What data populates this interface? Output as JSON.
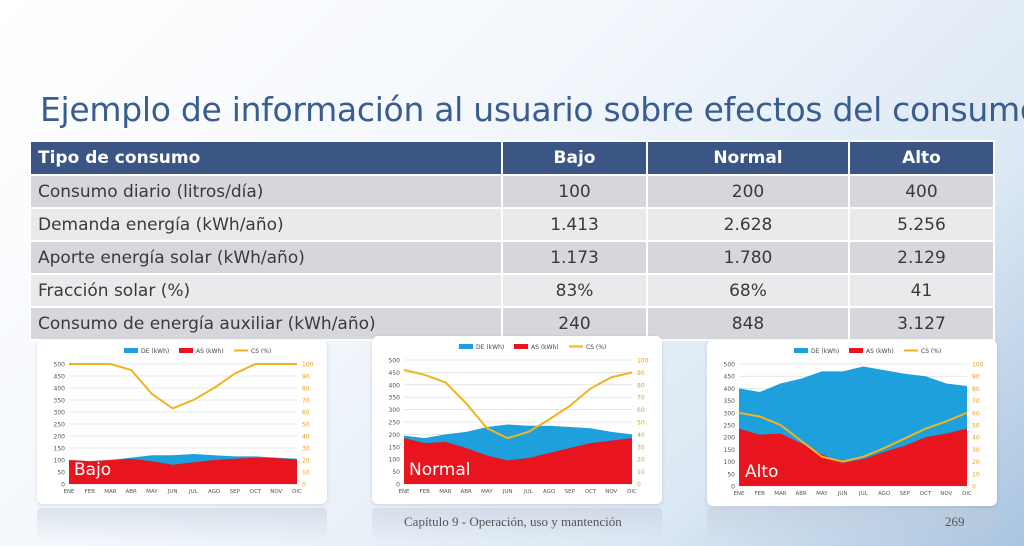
{
  "title": "Ejemplo de información al usuario sobre efectos del consumo",
  "table": {
    "headers": [
      "Tipo  de consumo",
      "Bajo",
      "Normal",
      "Alto"
    ],
    "rows": [
      [
        "Consumo diario (litros/día)",
        "100",
        "200",
        "400"
      ],
      [
        "Demanda energía (kWh/año)",
        "1.413",
        "2.628",
        "5.256"
      ],
      [
        "Aporte energía solar (kWh/año)",
        "1.173",
        "1.780",
        "2.129"
      ],
      [
        "Fracción solar (%)",
        "83%",
        "68%",
        "41"
      ],
      [
        "Consumo de energía auxiliar (kWh/año)",
        "240",
        "848",
        "3.127"
      ]
    ]
  },
  "colors": {
    "de": "#1ea0dc",
    "as": "#e8141e",
    "cs": "#f0b41e",
    "header": "#3b5584"
  },
  "chart_data": [
    {
      "type": "area",
      "tag": "Bajo",
      "legend": [
        "DE (kWh)",
        "AS (kWh)",
        "CS (%)"
      ],
      "categories": [
        "ENE",
        "FEB",
        "MAR",
        "ABR",
        "MAY",
        "JUN",
        "JUL",
        "AGO",
        "SEP",
        "OCT",
        "NOV",
        "DIC"
      ],
      "ylim": [
        0,
        500
      ],
      "y_ticks": [
        "0",
        "50",
        "100",
        "150",
        "200",
        "250",
        "300",
        "350",
        "400",
        "450",
        "500"
      ],
      "y2lim": [
        0,
        100
      ],
      "y2_ticks": [
        "0",
        "10",
        "20",
        "30",
        "40",
        "50",
        "60",
        "70",
        "80",
        "90",
        "100"
      ],
      "series": [
        {
          "name": "DE (kWh)",
          "axis": "left",
          "values": [
            100,
            95,
            100,
            110,
            120,
            120,
            125,
            120,
            115,
            115,
            110,
            105
          ]
        },
        {
          "name": "AS (kWh)",
          "axis": "left",
          "values": [
            100,
            95,
            100,
            105,
            95,
            80,
            90,
            100,
            105,
            110,
            108,
            102
          ]
        },
        {
          "name": "CS (%)",
          "axis": "right",
          "values": [
            100,
            100,
            100,
            95,
            75,
            63,
            70,
            80,
            92,
            100,
            100,
            100
          ]
        }
      ]
    },
    {
      "type": "area",
      "tag": "Normal",
      "legend": [
        "DE (kWh)",
        "AS (kWh)",
        "CS (%)"
      ],
      "categories": [
        "ENE",
        "FEB",
        "MAR",
        "ABR",
        "MAY",
        "JUN",
        "JUL",
        "AGO",
        "SEP",
        "OCT",
        "NOV",
        "DIC"
      ],
      "ylim": [
        0,
        500
      ],
      "y_ticks": [
        "0",
        "50",
        "100",
        "150",
        "200",
        "250",
        "300",
        "350",
        "400",
        "450",
        "500"
      ],
      "y2lim": [
        0,
        100
      ],
      "y2_ticks": [
        "0",
        "10",
        "20",
        "30",
        "40",
        "50",
        "60",
        "70",
        "80",
        "90",
        "100"
      ],
      "series": [
        {
          "name": "DE (kWh)",
          "axis": "left",
          "values": [
            195,
            185,
            200,
            210,
            230,
            240,
            235,
            235,
            230,
            225,
            210,
            200
          ]
        },
        {
          "name": "AS (kWh)",
          "axis": "left",
          "values": [
            185,
            165,
            170,
            145,
            115,
            95,
            105,
            125,
            145,
            165,
            175,
            185
          ]
        },
        {
          "name": "CS (%)",
          "axis": "right",
          "values": [
            92,
            88,
            82,
            65,
            45,
            37,
            42,
            52,
            63,
            77,
            86,
            90
          ]
        }
      ]
    },
    {
      "type": "area",
      "tag": "Alto",
      "legend": [
        "DE (kWh)",
        "AS (kWh)",
        "CS (%)"
      ],
      "categories": [
        "ENE",
        "FEB",
        "MAR",
        "ABR",
        "MAY",
        "JUN",
        "JUL",
        "AGO",
        "SEP",
        "OCT",
        "NOV",
        "DIC"
      ],
      "ylim": [
        0,
        500
      ],
      "y_ticks": [
        "0",
        "50",
        "100",
        "150",
        "200",
        "250",
        "300",
        "350",
        "400",
        "450",
        "500"
      ],
      "y2lim": [
        0,
        100
      ],
      "y2_ticks": [
        "0",
        "10",
        "20",
        "30",
        "40",
        "50",
        "60",
        "70",
        "80",
        "90",
        "100"
      ],
      "series": [
        {
          "name": "DE (kWh)",
          "axis": "left",
          "values": [
            400,
            385,
            420,
            440,
            470,
            470,
            490,
            475,
            460,
            450,
            420,
            410
          ]
        },
        {
          "name": "AS (kWh)",
          "axis": "left",
          "values": [
            235,
            210,
            215,
            175,
            130,
            95,
            110,
            140,
            165,
            200,
            215,
            235
          ]
        },
        {
          "name": "CS (%)",
          "axis": "right",
          "values": [
            60,
            57,
            50,
            37,
            24,
            20,
            24,
            31,
            39,
            47,
            53,
            60
          ]
        }
      ]
    }
  ],
  "footer": {
    "text": "Capítulo 9 - Operación, uso y mantención",
    "page": "269"
  }
}
